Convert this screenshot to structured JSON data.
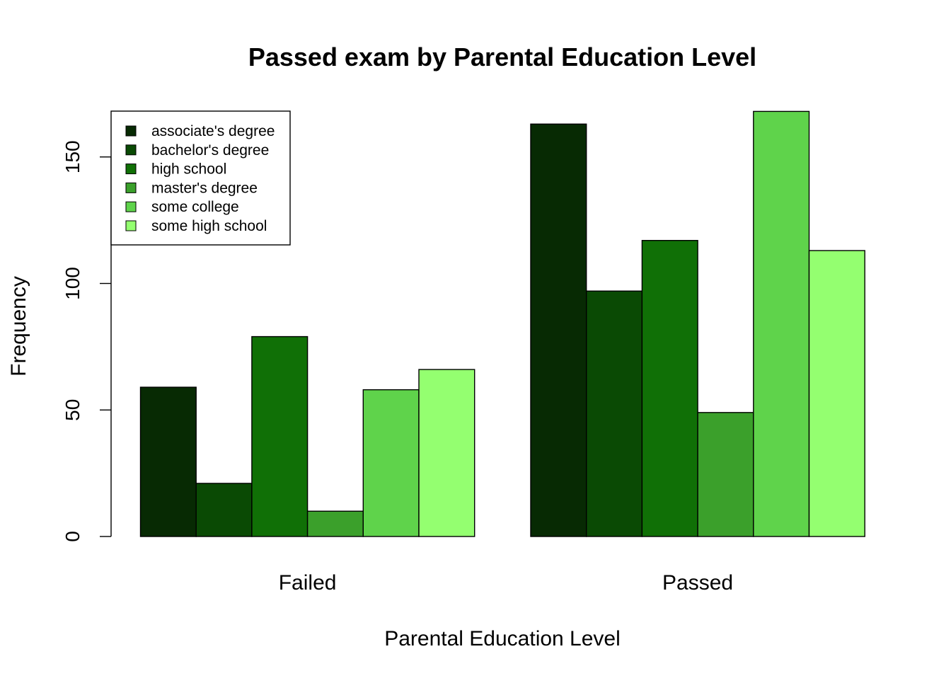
{
  "chart_data": {
    "type": "bar",
    "title": "Passed exam by Parental Education Level",
    "xlabel": "Parental Education Level",
    "ylabel": "Frequency",
    "categories": [
      "Failed",
      "Passed"
    ],
    "series": [
      {
        "name": "associate's degree",
        "color": "#072A03",
        "values": [
          59,
          163
        ]
      },
      {
        "name": "bachelor's degree",
        "color": "#0A4A04",
        "values": [
          21,
          97
        ]
      },
      {
        "name": "high school",
        "color": "#107006",
        "values": [
          79,
          117
        ]
      },
      {
        "name": "master's degree",
        "color": "#3BA02B",
        "values": [
          10,
          49
        ]
      },
      {
        "name": "some college",
        "color": "#5FD34B",
        "values": [
          58,
          168
        ]
      },
      {
        "name": "some high school",
        "color": "#94FF70",
        "values": [
          66,
          113
        ]
      }
    ],
    "yticks": [
      "0",
      "50",
      "100",
      "150"
    ],
    "ylim": [
      0,
      170
    ],
    "grid": false,
    "legend_position": "top-left"
  }
}
